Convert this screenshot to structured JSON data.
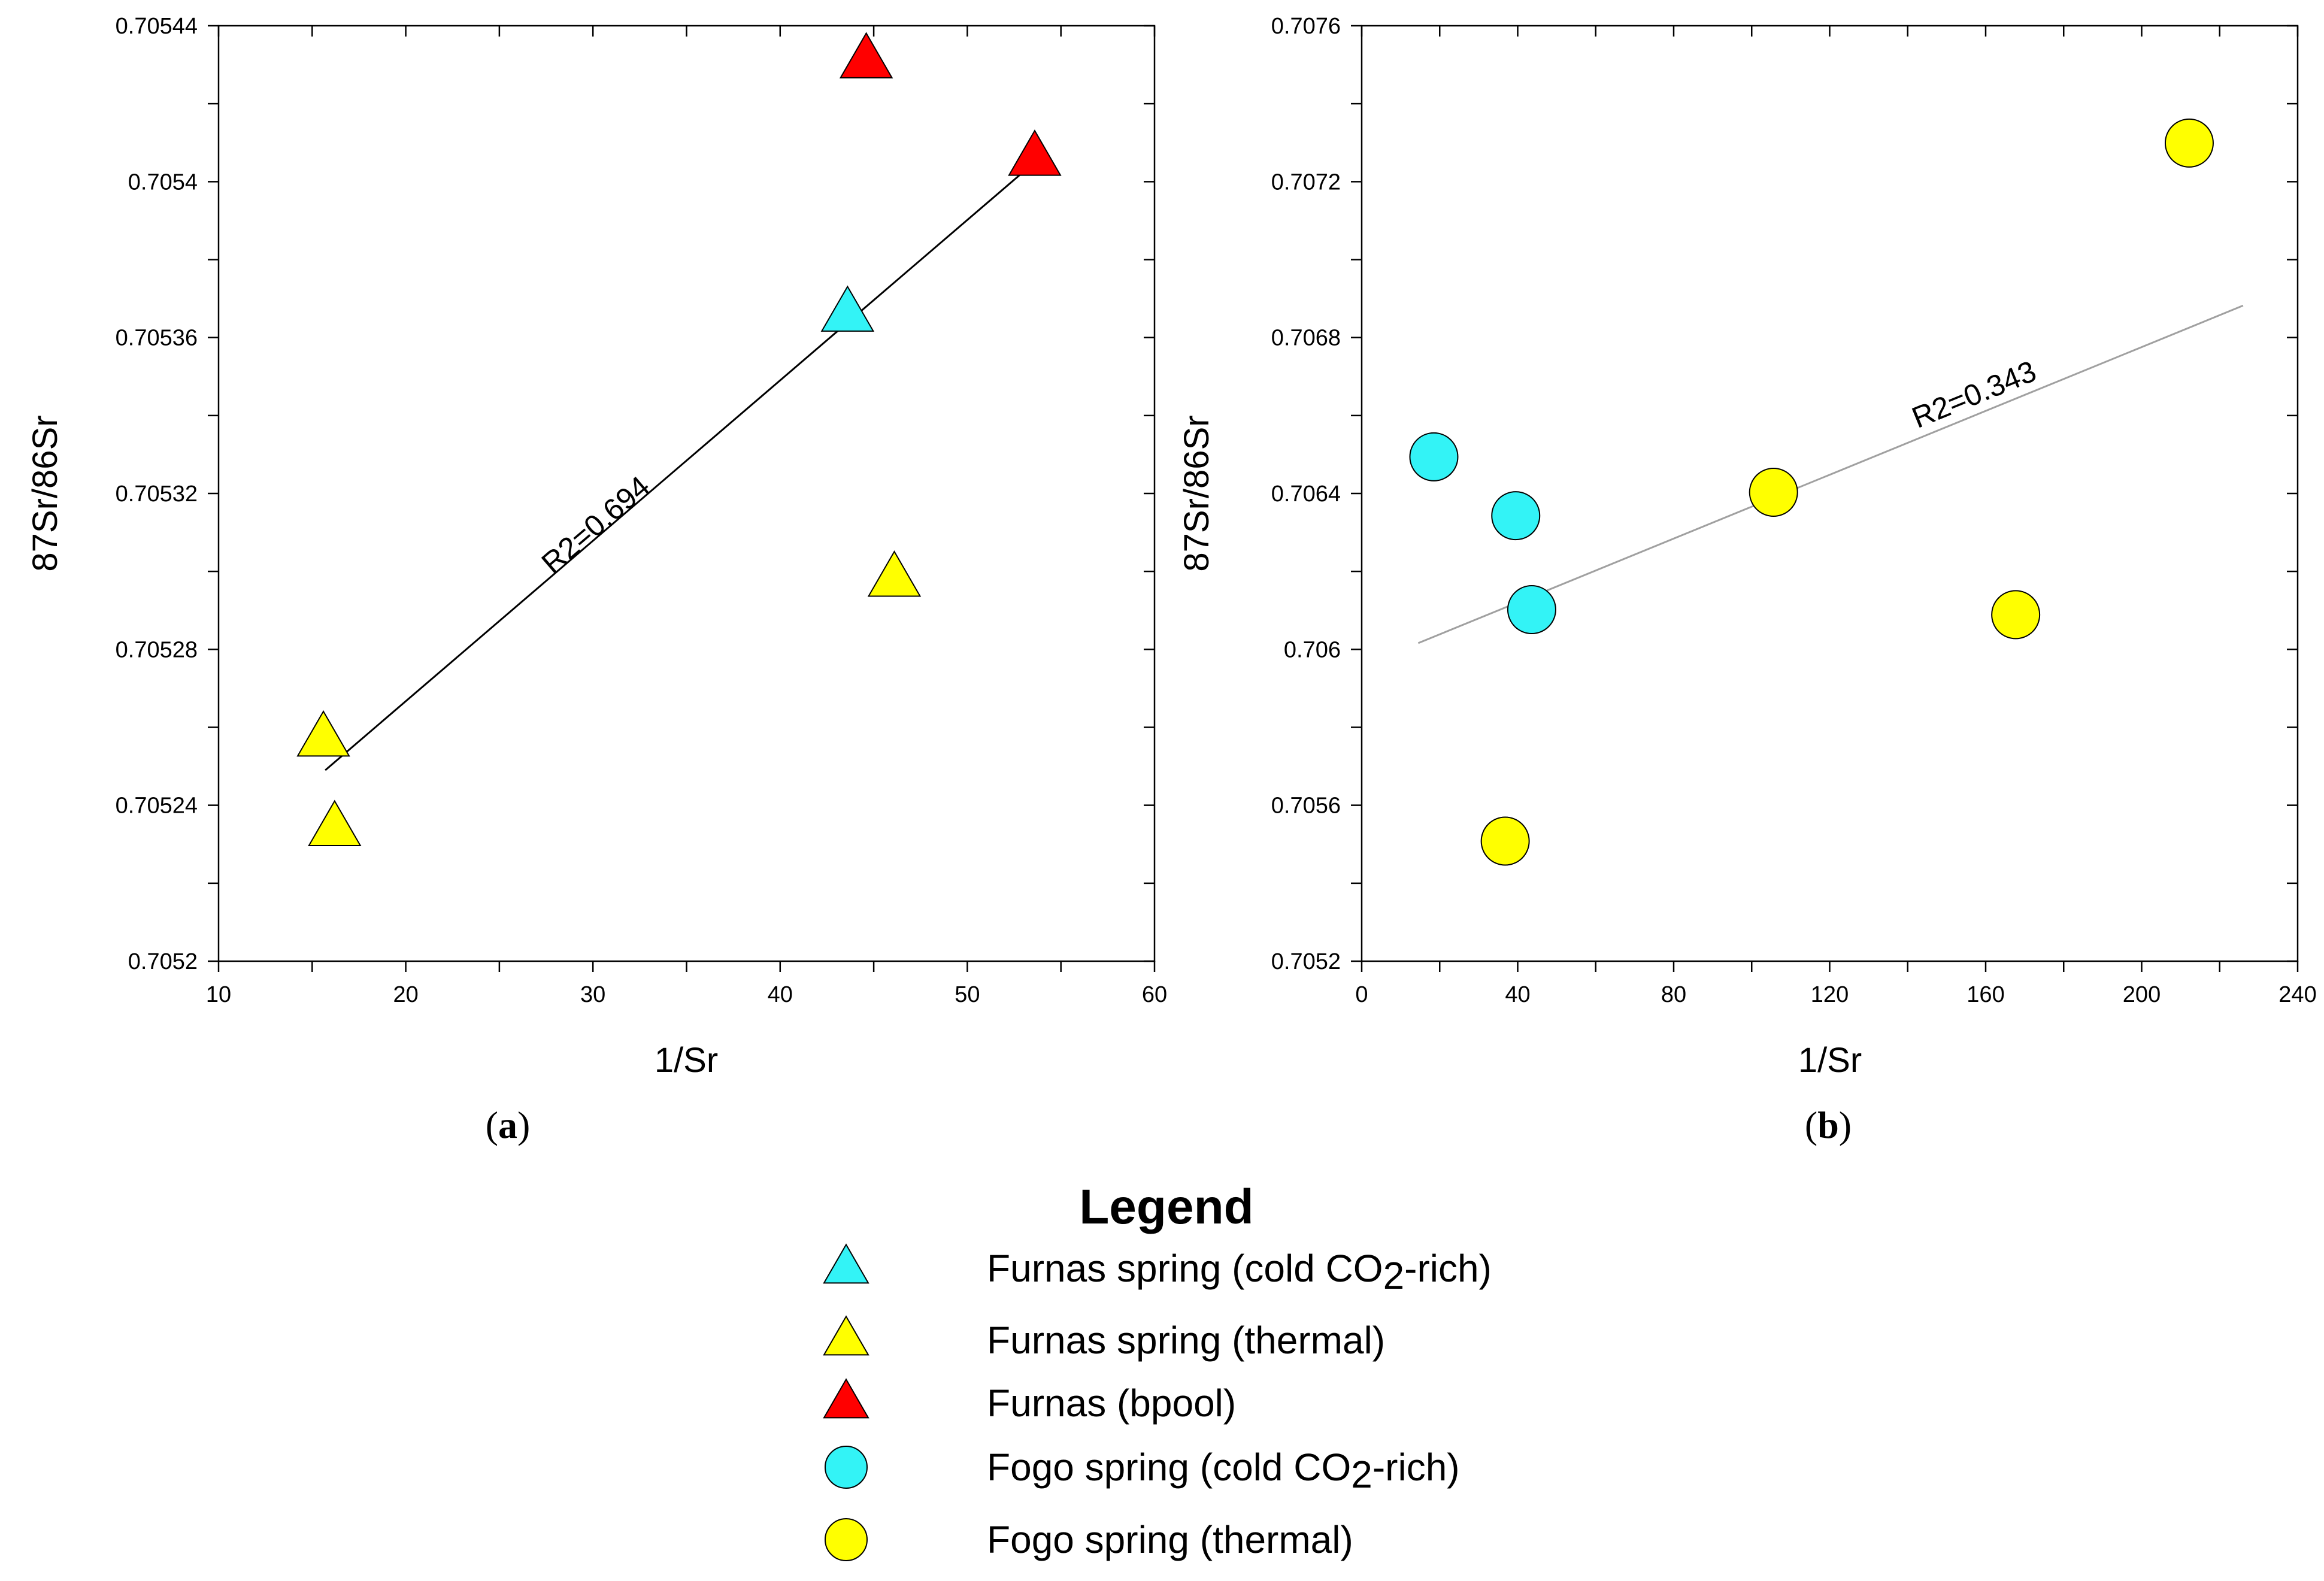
{
  "chart_data": [
    {
      "type": "scatter",
      "panel_label_open": "(",
      "panel_label": "a",
      "panel_label_close": ")",
      "xlabel": "1/Sr",
      "ylabel": "87Sr/86Sr",
      "xlim": [
        10,
        60
      ],
      "ylim": [
        0.7052,
        0.70544
      ],
      "xticks": [
        10,
        20,
        30,
        40,
        50,
        60
      ],
      "xtick_labels": [
        "10",
        "20",
        "30",
        "40",
        "50",
        "60"
      ],
      "xminor": [
        15,
        25,
        35,
        45,
        55
      ],
      "yticks": [
        0.7052,
        0.70524,
        0.70528,
        0.70532,
        0.70536,
        0.7054,
        0.70544
      ],
      "ytick_labels": [
        "0.7052",
        "0.70524",
        "0.70528",
        "0.70532",
        "0.70536",
        "0.7054",
        "0.70544"
      ],
      "yminor": [
        0.70522,
        0.70526,
        0.7053,
        0.70534,
        0.70538,
        0.70542
      ],
      "grid": false,
      "trendline": {
        "x": [
          15.7,
          53.6
        ],
        "y": [
          0.705249,
          0.705405
        ],
        "color": "#000000"
      },
      "annotation": {
        "text": "R2=0.694",
        "x": 30.5,
        "y": 0.70531
      },
      "series": [
        {
          "name": "Furnas spring (cold CO2-rich)",
          "marker": "triangle",
          "color": "#33f3f6",
          "points": [
            {
              "x": 43.6,
              "y": 0.705366
            }
          ]
        },
        {
          "name": "Furnas spring (thermal)",
          "marker": "triangle",
          "color": "#ffff00",
          "points": [
            {
              "x": 15.6,
              "y": 0.705257
            },
            {
              "x": 16.2,
              "y": 0.705234
            },
            {
              "x": 46.1,
              "y": 0.705298
            }
          ]
        },
        {
          "name": "Furnas (bpool)",
          "marker": "triangle",
          "color": "#ff0000",
          "points": [
            {
              "x": 44.6,
              "y": 0.705431
            },
            {
              "x": 53.6,
              "y": 0.705406
            }
          ]
        }
      ]
    },
    {
      "type": "scatter",
      "panel_label_open": "(",
      "panel_label": "b",
      "panel_label_close": ")",
      "xlabel": "1/Sr",
      "ylabel": "87Sr/86Sr",
      "xlim": [
        0,
        240
      ],
      "ylim": [
        0.7052,
        0.7076
      ],
      "xticks": [
        0,
        40,
        80,
        120,
        160,
        200,
        240
      ],
      "xtick_labels": [
        "0",
        "40",
        "80",
        "120",
        "160",
        "200",
        "240"
      ],
      "xminor": [
        20,
        60,
        100,
        140,
        180,
        220
      ],
      "yticks": [
        0.7052,
        0.7056,
        0.706,
        0.7064,
        0.7068,
        0.7072,
        0.7076
      ],
      "ytick_labels": [
        "0.7052",
        "0.7056",
        "0.706",
        "0.7064",
        "0.7068",
        "0.7072",
        "0.7076"
      ],
      "yminor": [
        0.7054,
        0.7058,
        0.7062,
        0.7066,
        0.707,
        0.7074
      ],
      "grid": false,
      "trendline": {
        "x": [
          14.5,
          226
        ],
        "y": [
          0.706016,
          0.706882
        ],
        "color": "#a0a0a0"
      },
      "annotation": {
        "text": "R2=0.343",
        "x": 158,
        "y": 0.70663
      },
      "series": [
        {
          "name": "Fogo spring (cold CO2-rich)",
          "marker": "circle",
          "color": "#33f3f6",
          "points": [
            {
              "x": 18.5,
              "y": 0.706494
            },
            {
              "x": 39.5,
              "y": 0.706343
            },
            {
              "x": 43.6,
              "y": 0.706102
            }
          ]
        },
        {
          "name": "Fogo spring (thermal)",
          "marker": "circle",
          "color": "#ffff00",
          "points": [
            {
              "x": 36.8,
              "y": 0.705508
            },
            {
              "x": 105.6,
              "y": 0.706403
            },
            {
              "x": 167.7,
              "y": 0.706089
            },
            {
              "x": 212.2,
              "y": 0.707299
            }
          ]
        }
      ]
    }
  ],
  "legend": {
    "title": "Legend",
    "items": [
      {
        "marker": "triangle",
        "color": "#33f3f6",
        "label_pre": "Furnas spring (cold CO",
        "label_sub": "2",
        "label_post": "-rich)"
      },
      {
        "marker": "triangle",
        "color": "#ffff00",
        "label_pre": "Furnas spring (thermal)",
        "label_sub": "",
        "label_post": ""
      },
      {
        "marker": "triangle",
        "color": "#ff0000",
        "label_pre": "Furnas (bpool)",
        "label_sub": "",
        "label_post": ""
      },
      {
        "marker": "circle",
        "color": "#33f3f6",
        "label_pre": "Fogo spring (cold CO",
        "label_sub": "2",
        "label_post": "-rich)"
      },
      {
        "marker": "circle",
        "color": "#ffff00",
        "label_pre": "Fogo spring (thermal)",
        "label_sub": "",
        "label_post": ""
      }
    ]
  }
}
